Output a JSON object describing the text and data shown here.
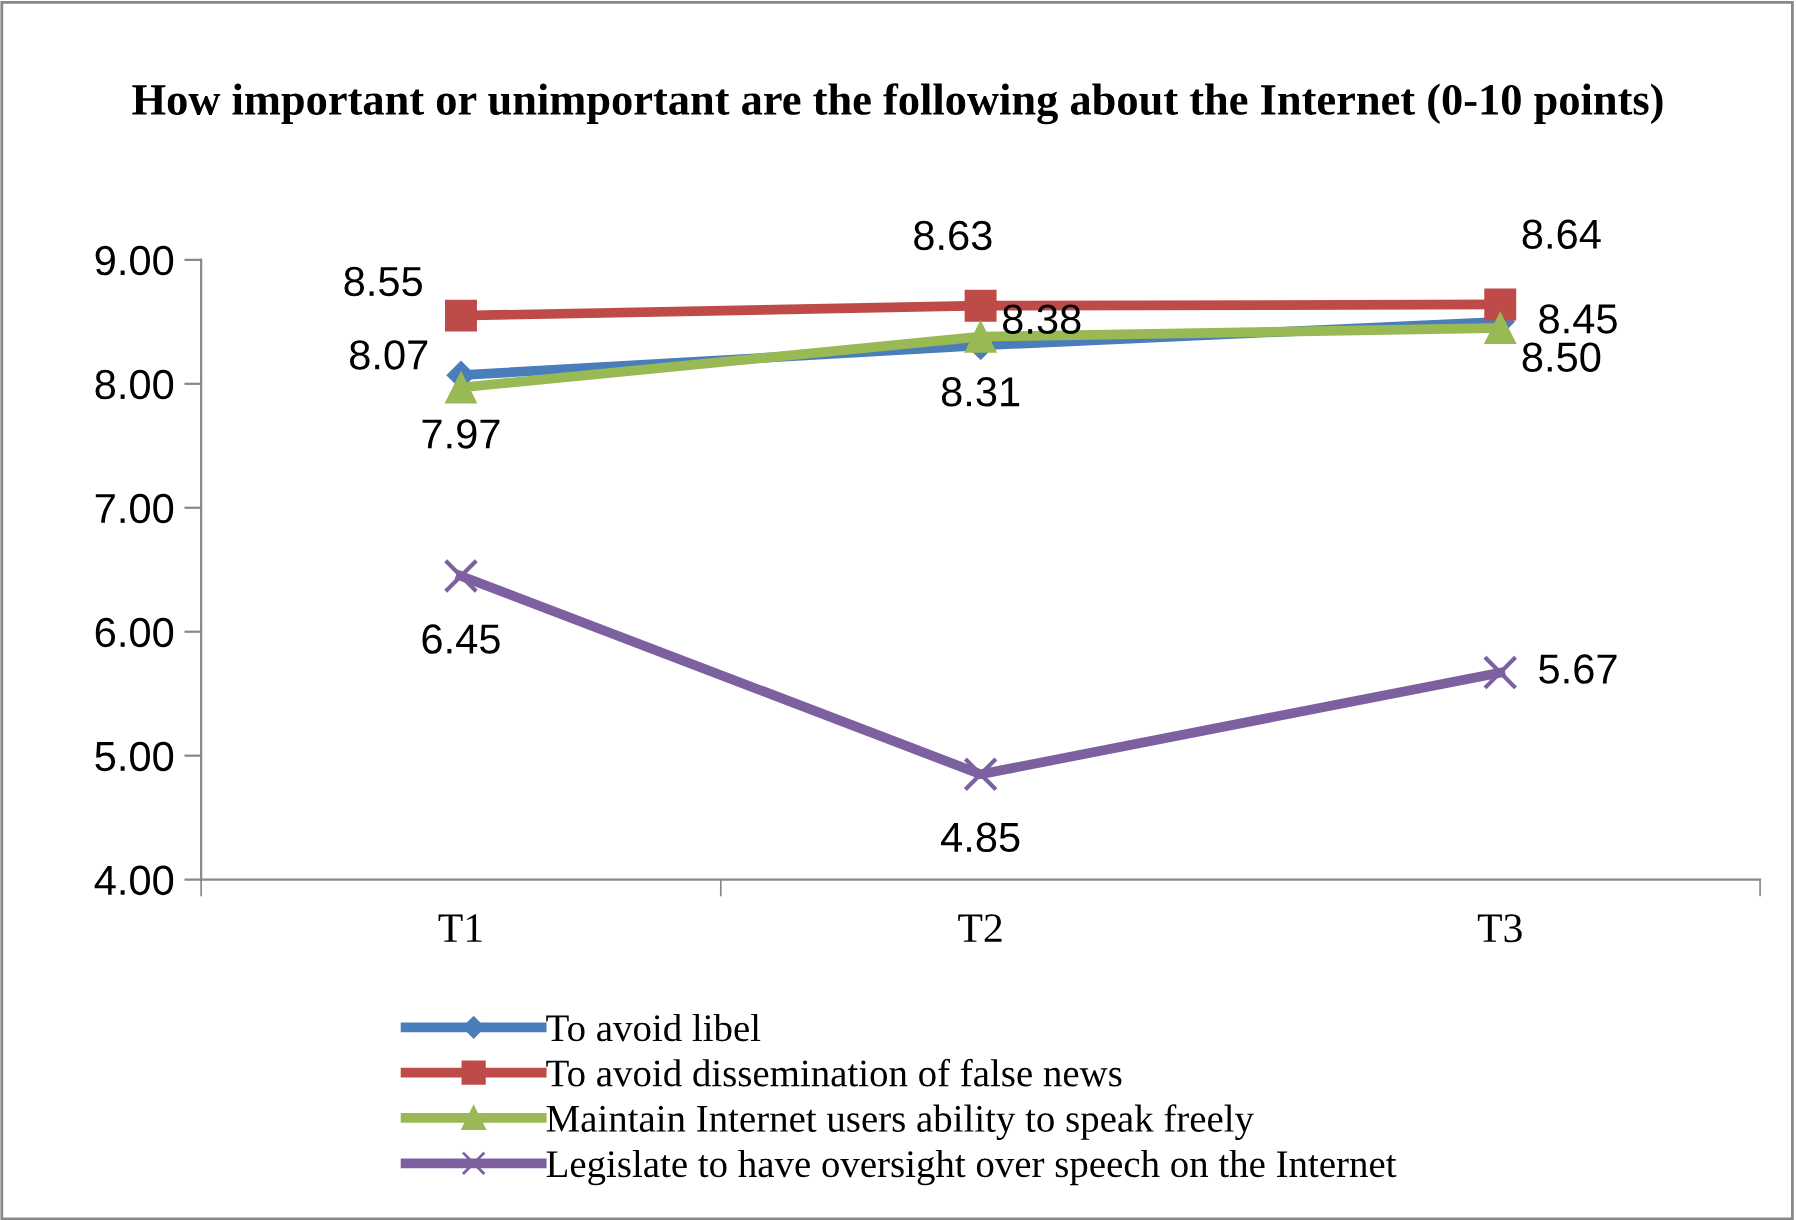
{
  "chart_data": {
    "type": "line",
    "title": "How important or unimportant are the following about the Internet (0-10 points)",
    "categories": [
      "T1",
      "T2",
      "T3"
    ],
    "series": [
      {
        "name": "To avoid libel",
        "color": "#4a7ebb",
        "marker": "diamond",
        "values": [
          8.07,
          8.31,
          8.5
        ],
        "value_labels": [
          "8.07",
          "8.31",
          "8.50"
        ]
      },
      {
        "name": "To avoid dissemination of false news",
        "color": "#be4b48",
        "marker": "square",
        "values": [
          8.55,
          8.63,
          8.64
        ],
        "value_labels": [
          "8.55",
          "8.63",
          "8.64"
        ]
      },
      {
        "name": "Maintain Internet users ability to speak freely",
        "color": "#98b954",
        "marker": "triangle",
        "values": [
          7.97,
          8.38,
          8.45
        ],
        "value_labels": [
          "7.97",
          "8.38",
          "8.45"
        ]
      },
      {
        "name": "Legislate to have oversight over speech on the Internet",
        "color": "#7d60a0",
        "marker": "cross",
        "values": [
          6.45,
          4.85,
          5.67
        ],
        "value_labels": [
          "6.45",
          "4.85",
          "5.67"
        ]
      }
    ],
    "ylim": [
      4,
      9
    ],
    "yticks": [
      {
        "value": 4,
        "label": "4.00"
      },
      {
        "value": 5,
        "label": "5.00"
      },
      {
        "value": 6,
        "label": "6.00"
      },
      {
        "value": 7,
        "label": "7.00"
      },
      {
        "value": 8,
        "label": "8.00"
      },
      {
        "value": 9,
        "label": "9.00"
      }
    ],
    "grid": false,
    "legend": "bottom"
  }
}
